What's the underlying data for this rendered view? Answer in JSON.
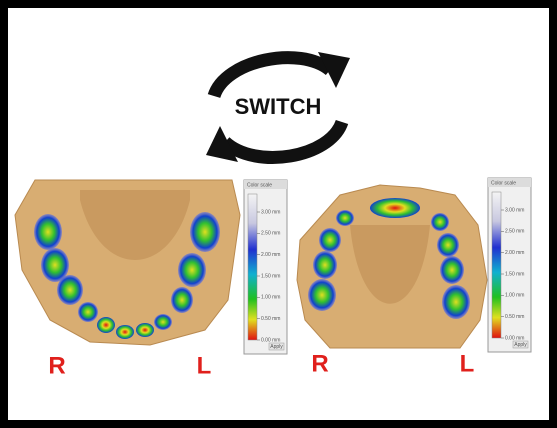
{
  "title": "SWITCH",
  "panels": [
    {
      "side_left": "R",
      "side_right": "L",
      "scale": {
        "title": "Color scale",
        "labels": [
          "3.00 mm",
          "2.50 mm",
          "2.00 mm",
          "1.50 mm",
          "1.00 mm",
          "0.50 mm",
          "0.00 mm"
        ],
        "button": "Apply"
      }
    },
    {
      "side_left": "R",
      "side_right": "L",
      "scale": {
        "title": "Color scale",
        "labels": [
          "3.00 mm",
          "2.50 mm",
          "2.00 mm",
          "1.50 mm",
          "1.00 mm",
          "0.50 mm",
          "0.00 mm"
        ],
        "button": "Apply"
      }
    }
  ]
}
